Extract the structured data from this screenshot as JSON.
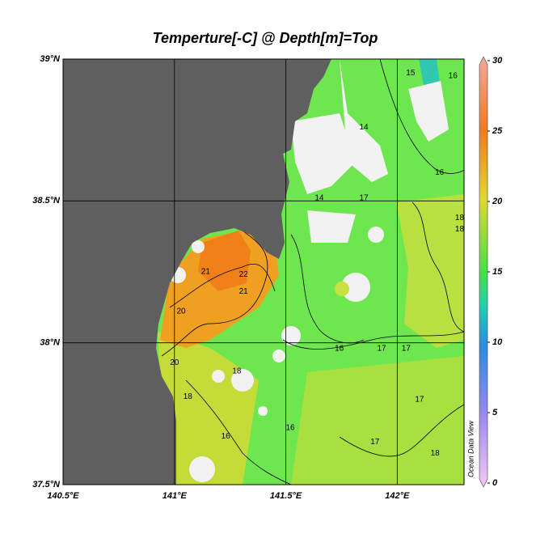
{
  "map": {
    "title": "Temperture[-C] @ Depth[m]=Top",
    "xlim": [
      140.5,
      142.3
    ],
    "ylim": [
      37.5,
      39
    ],
    "xticks": [
      {
        "value": 140.5,
        "label": "140.5°E"
      },
      {
        "value": 141,
        "label": "141°E"
      },
      {
        "value": 141.5,
        "label": "141.5°E"
      },
      {
        "value": 142,
        "label": "142°E"
      }
    ],
    "yticks": [
      {
        "value": 37.5,
        "label": "37.5°N"
      },
      {
        "value": 38,
        "label": "38°N"
      },
      {
        "value": 38.5,
        "label": "38.5°N"
      },
      {
        "value": 39,
        "label": "39°N"
      }
    ],
    "grid": true,
    "colorbar": {
      "lim": [
        0,
        30
      ],
      "ticks": [
        0,
        5,
        10,
        15,
        20,
        25,
        30
      ]
    },
    "watermark": "Ocean Data View",
    "contour_labels": [
      {
        "value": 15,
        "lon": 142.06,
        "lat": 38.95
      },
      {
        "value": 16,
        "lon": 142.25,
        "lat": 38.94
      },
      {
        "value": 14,
        "lon": 141.85,
        "lat": 38.76
      },
      {
        "value": 16,
        "lon": 142.19,
        "lat": 38.6
      },
      {
        "value": 14,
        "lon": 141.65,
        "lat": 38.51
      },
      {
        "value": 17,
        "lon": 141.85,
        "lat": 38.51
      },
      {
        "value": 18,
        "lon": 142.28,
        "lat": 38.44
      },
      {
        "value": 18,
        "lon": 142.28,
        "lat": 38.4
      },
      {
        "value": 22,
        "lon": 141.31,
        "lat": 38.24
      },
      {
        "value": 21,
        "lon": 141.14,
        "lat": 38.25
      },
      {
        "value": 21,
        "lon": 141.31,
        "lat": 38.18
      },
      {
        "value": 20,
        "lon": 141.03,
        "lat": 38.11
      },
      {
        "value": 16,
        "lon": 141.74,
        "lat": 37.98
      },
      {
        "value": 17,
        "lon": 141.93,
        "lat": 37.98
      },
      {
        "value": 17,
        "lon": 142.04,
        "lat": 37.98
      },
      {
        "value": 18,
        "lon": 141.28,
        "lat": 37.9
      },
      {
        "value": 18,
        "lon": 141.06,
        "lat": 37.81
      },
      {
        "value": 16,
        "lon": 141.52,
        "lat": 37.7
      },
      {
        "value": 17,
        "lon": 141.9,
        "lat": 37.65
      },
      {
        "value": 18,
        "lon": 142.17,
        "lat": 37.61
      },
      {
        "value": 16,
        "lon": 141.23,
        "lat": 37.67
      },
      {
        "value": 20,
        "lon": 141.0,
        "lat": 37.93
      },
      {
        "value": 17,
        "lon": 142.1,
        "lat": 37.8
      }
    ]
  }
}
